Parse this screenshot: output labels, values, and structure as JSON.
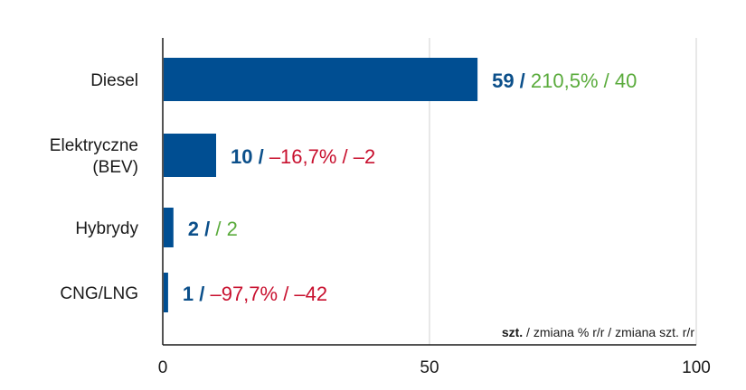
{
  "chart_data": {
    "type": "bar",
    "orientation": "horizontal",
    "categories": [
      {
        "lines": [
          "Diesel"
        ]
      },
      {
        "lines": [
          "Elektryczne",
          "(BEV)"
        ]
      },
      {
        "lines": [
          "Hybrydy"
        ]
      },
      {
        "lines": [
          "CNG/LNG"
        ]
      }
    ],
    "values": [
      59,
      10,
      2,
      1
    ],
    "pct_change": [
      "210,5%",
      "–16,7%",
      "",
      "–97,7%"
    ],
    "abs_change": [
      "40",
      "–2",
      "2",
      "–42"
    ],
    "xlim": [
      0,
      100
    ],
    "xticks": [
      "0",
      "50",
      "100"
    ],
    "grid": true,
    "unit_note": {
      "bold": "szt.",
      "rest": " / zmiana % r/r / zmiana szt. r/r"
    },
    "colors": {
      "bar": "#004e92",
      "value": "#0b4f8a",
      "negative": "#c8102e",
      "positive": "#5aab3c",
      "grid": "#d0d0d0",
      "axis": "#1a1a1a"
    }
  }
}
